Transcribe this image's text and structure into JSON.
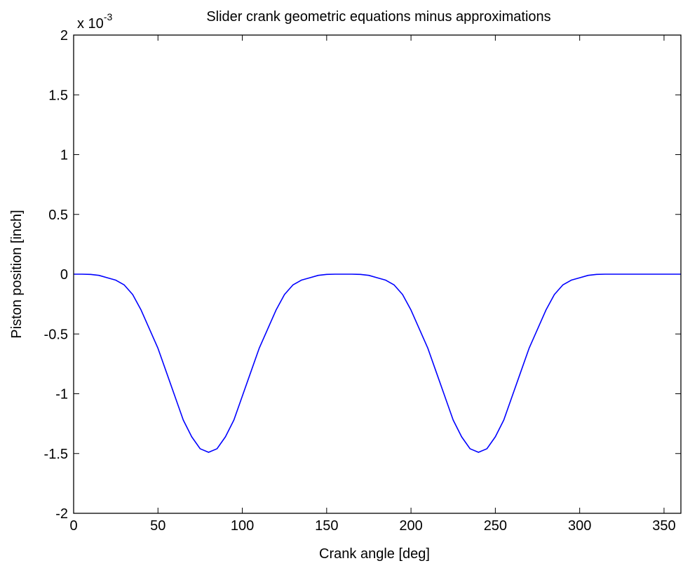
{
  "chart_data": {
    "type": "line",
    "title": "Slider crank geometric equations minus approximations",
    "xlabel": "Crank angle [deg]",
    "ylabel": "Piston position [inch]",
    "y_exponent_base": "x 10",
    "y_exponent_power": "-3",
    "xlim": [
      0,
      360
    ],
    "ylim": [
      -2,
      2
    ],
    "xticks": [
      0,
      50,
      100,
      150,
      200,
      250,
      300,
      350
    ],
    "xtick_labels": [
      "0",
      "50",
      "100",
      "150",
      "200",
      "250",
      "300",
      "350"
    ],
    "yticks": [
      -2,
      -1.5,
      -1,
      -0.5,
      0,
      0.5,
      1,
      1.5,
      2
    ],
    "ytick_labels": [
      "-2",
      "-1.5",
      "-1",
      "-0.5",
      "0",
      "0.5",
      "1",
      "1.5",
      "2"
    ],
    "grid": false,
    "line_color": "#0000ff",
    "series": [
      {
        "x": [
          0,
          5,
          10,
          15,
          20,
          25,
          30,
          35,
          40,
          45,
          50,
          55,
          60,
          65,
          70,
          75,
          80,
          85,
          90,
          95,
          100,
          105,
          110,
          115,
          120,
          125,
          130,
          135,
          140,
          145,
          150,
          155,
          160,
          165,
          170,
          175,
          180,
          185,
          190,
          195,
          200,
          205,
          210,
          215,
          220,
          225,
          230,
          235,
          240,
          245,
          250,
          255,
          260,
          265,
          270,
          275,
          280,
          285,
          290,
          295,
          300,
          305,
          310,
          315,
          320,
          325,
          330,
          335,
          340,
          345,
          350,
          355,
          360
        ],
        "y": [
          0,
          0,
          -0.002,
          -0.01,
          -0.03,
          -0.05,
          -0.09,
          -0.17,
          -0.3,
          -0.46,
          -0.62,
          -0.82,
          -1.02,
          -1.22,
          -1.36,
          -1.46,
          -1.49,
          -1.46,
          -1.36,
          -1.22,
          -1.02,
          -0.82,
          -0.62,
          -0.46,
          -0.3,
          -0.17,
          -0.09,
          -0.05,
          -0.03,
          -0.01,
          -0.002,
          0,
          0,
          0,
          -0.002,
          -0.01,
          -0.03,
          -0.05,
          -0.09,
          -0.17,
          -0.3,
          -0.46,
          -0.62,
          -0.82,
          -1.02,
          -1.22,
          -1.36,
          -1.46,
          -1.49,
          -1.46,
          -1.36,
          -1.22,
          -1.02,
          -0.82,
          -0.62,
          -0.46,
          -0.3,
          -0.17,
          -0.09,
          -0.05,
          -0.03,
          -0.01,
          -0.002,
          0,
          0,
          0,
          0,
          0,
          0,
          0,
          0,
          0,
          0
        ]
      }
    ]
  }
}
